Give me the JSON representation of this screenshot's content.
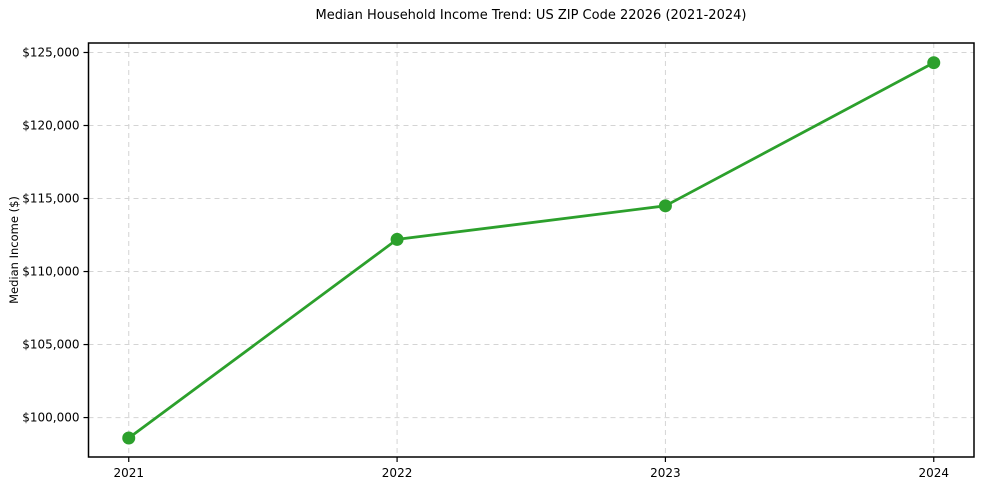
{
  "chart_data": {
    "type": "line",
    "title": "Median Household Income Trend: US ZIP Code 22026 (2021-2024)",
    "xlabel": "",
    "ylabel": "Median Income ($)",
    "x": [
      2021,
      2022,
      2023,
      2024
    ],
    "x_tick_labels": [
      "2021",
      "2022",
      "2023",
      "2024"
    ],
    "values": [
      98600,
      112200,
      114500,
      124300
    ],
    "series_name": "Median Household Income",
    "y_ticks": [
      100000,
      105000,
      110000,
      115000,
      120000,
      125000
    ],
    "y_tick_labels": [
      "$100,000",
      "$105,000",
      "$110,000",
      "$115,000",
      "$120,000",
      "$125,000"
    ],
    "ylim": [
      97300,
      125650
    ],
    "xlim": [
      2020.85,
      2024.15
    ],
    "grid": "both, dashed",
    "legend": "none",
    "line_color": "#2ca02c",
    "marker": "o",
    "marker_color": "#2ca02c",
    "grid_color": "#d4d4d4",
    "spine_color": "#000000",
    "background_color": "#ffffff"
  }
}
